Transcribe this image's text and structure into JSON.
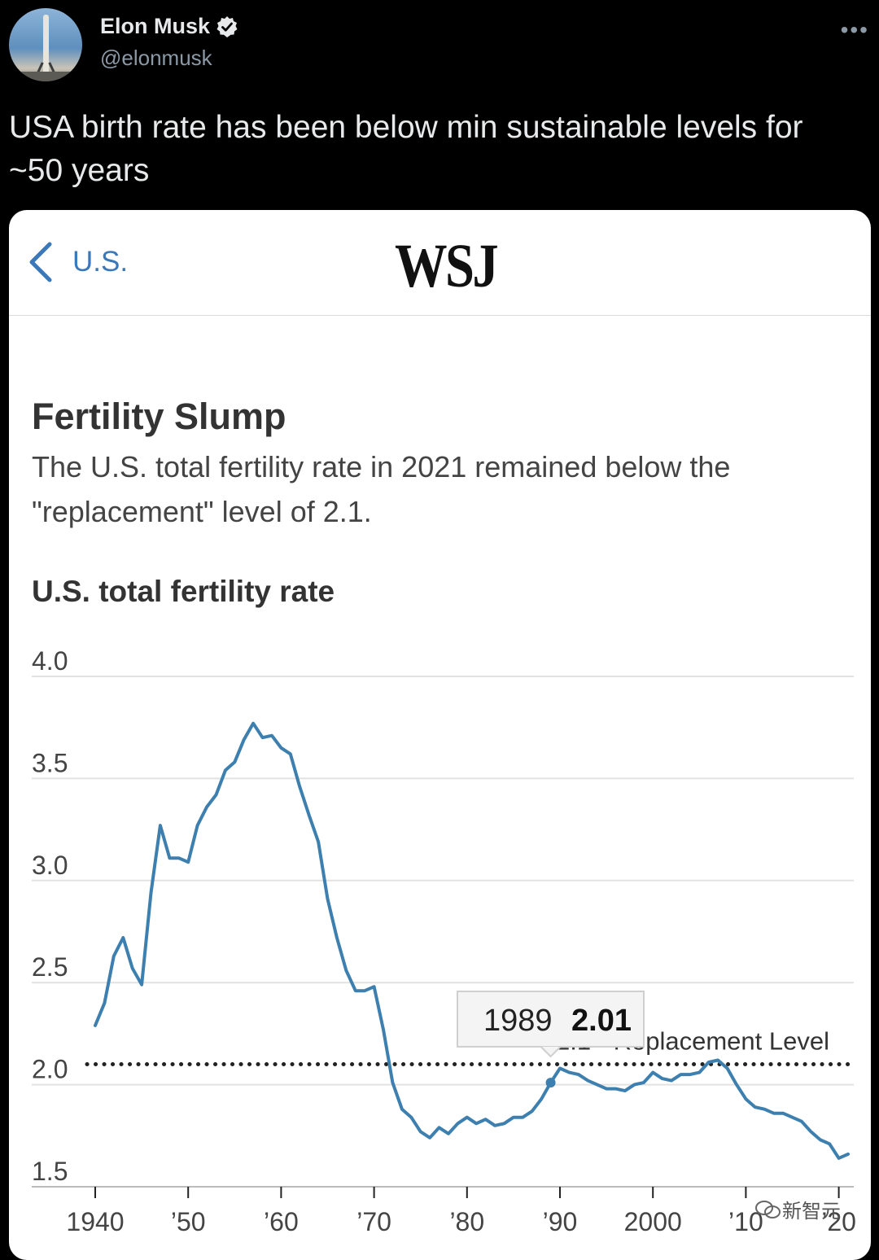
{
  "tweet": {
    "author_name": "Elon Musk",
    "author_handle": "@elonmusk",
    "more_icon": "•••",
    "text": "USA birth rate has been below min sustainable levels for ~50 years"
  },
  "card": {
    "back_label": "U.S.",
    "logo": "WSJ"
  },
  "watermark": {
    "text": "新智元"
  },
  "colors": {
    "accent": "#3b78b9",
    "line": "#3d7fae",
    "verified": "#e7e9ea"
  },
  "chart_data": {
    "type": "line",
    "title": "Fertility Slump",
    "subtitle": "The U.S. total fertility rate in 2021 remained below the \"replacement\" level of 2.1.",
    "ylabel": "U.S. total fertility rate",
    "xlabel": "",
    "ylim": [
      1.5,
      4.0
    ],
    "xlim": [
      1940,
      2021
    ],
    "y_ticks": [
      {
        "value": 4.0,
        "label": "4.0"
      },
      {
        "value": 3.5,
        "label": "3.5"
      },
      {
        "value": 3.0,
        "label": "3.0"
      },
      {
        "value": 2.5,
        "label": "2.5"
      },
      {
        "value": 2.0,
        "label": "2.0"
      },
      {
        "value": 1.5,
        "label": "1.5"
      }
    ],
    "x_ticks": [
      {
        "value": 1940,
        "label": "1940"
      },
      {
        "value": 1950,
        "label": "’50"
      },
      {
        "value": 1960,
        "label": "’60"
      },
      {
        "value": 1970,
        "label": "’70"
      },
      {
        "value": 1980,
        "label": "’80"
      },
      {
        "value": 1990,
        "label": "’90"
      },
      {
        "value": 2000,
        "label": "2000"
      },
      {
        "value": 2010,
        "label": "’10"
      },
      {
        "value": 2020,
        "label": "’20"
      }
    ],
    "grid": true,
    "reference_line": {
      "value": 2.1,
      "label": "2.1 - Replacement Level",
      "style": "dotted"
    },
    "tooltip": {
      "x": 1989,
      "x_label": "1989",
      "y": 2.01,
      "y_label": "2.01"
    },
    "series": [
      {
        "x": [
          1940,
          1941,
          1942,
          1943,
          1944,
          1945,
          1946,
          1947,
          1948,
          1949,
          1950,
          1951,
          1952,
          1953,
          1954,
          1955,
          1956,
          1957,
          1958,
          1959,
          1960,
          1961,
          1962,
          1963,
          1964,
          1965,
          1966,
          1967,
          1968,
          1969,
          1970,
          1971,
          1972,
          1973,
          1974,
          1975,
          1976,
          1977,
          1978,
          1979,
          1980,
          1981,
          1982,
          1983,
          1984,
          1985,
          1986,
          1987,
          1988,
          1989,
          1990,
          1991,
          1992,
          1993,
          1994,
          1995,
          1996,
          1997,
          1998,
          1999,
          2000,
          2001,
          2002,
          2003,
          2004,
          2005,
          2006,
          2007,
          2008,
          2009,
          2010,
          2011,
          2012,
          2013,
          2014,
          2015,
          2016,
          2017,
          2018,
          2019,
          2020,
          2021
        ],
        "values": [
          2.29,
          2.4,
          2.63,
          2.72,
          2.57,
          2.49,
          2.94,
          3.27,
          3.11,
          3.11,
          3.09,
          3.27,
          3.36,
          3.42,
          3.54,
          3.58,
          3.69,
          3.77,
          3.7,
          3.71,
          3.65,
          3.62,
          3.46,
          3.32,
          3.19,
          2.91,
          2.72,
          2.56,
          2.46,
          2.46,
          2.48,
          2.27,
          2.01,
          1.88,
          1.84,
          1.77,
          1.74,
          1.79,
          1.76,
          1.81,
          1.84,
          1.81,
          1.83,
          1.8,
          1.81,
          1.84,
          1.84,
          1.87,
          1.93,
          2.01,
          2.08,
          2.06,
          2.05,
          2.02,
          2.0,
          1.98,
          1.98,
          1.97,
          2.0,
          2.01,
          2.06,
          2.03,
          2.02,
          2.05,
          2.05,
          2.06,
          2.11,
          2.12,
          2.08,
          2.0,
          1.93,
          1.89,
          1.88,
          1.86,
          1.86,
          1.84,
          1.82,
          1.77,
          1.73,
          1.71,
          1.64,
          1.66
        ]
      }
    ]
  }
}
